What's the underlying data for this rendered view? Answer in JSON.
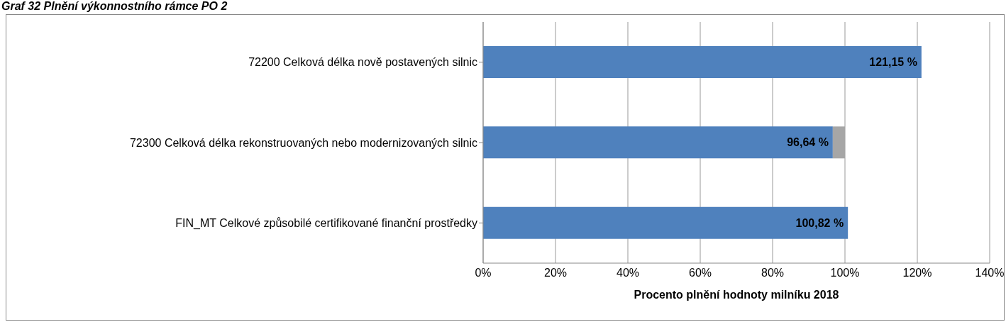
{
  "chart_data": {
    "type": "bar",
    "title": "Graf 32 Plnění výkonnostního rámce PO 2",
    "orientation": "horizontal",
    "stacked": true,
    "categories": [
      "72200 Celková délka nově postavených silnic",
      "72300 Celková délka rekonstruovaných nebo modernizovaných silnic",
      "FIN_MT Celkové způsobilé certifikované finanční prostředky"
    ],
    "series": [
      {
        "color": "#4f81bd",
        "values": [
          121.15,
          96.64,
          100.82
        ],
        "value_labels": [
          "121,15 %",
          "96,64 %",
          "100,82 %"
        ]
      },
      {
        "color": "#a6a6a6",
        "values": [
          null,
          3.36,
          null
        ]
      }
    ],
    "xlim": [
      0,
      140
    ],
    "xticks": [
      {
        "value": 0,
        "label": "0%"
      },
      {
        "value": 20,
        "label": "20%"
      },
      {
        "value": 40,
        "label": "40%"
      },
      {
        "value": 60,
        "label": "60%"
      },
      {
        "value": 80,
        "label": "80%"
      },
      {
        "value": 100,
        "label": "100%"
      },
      {
        "value": 120,
        "label": "120%"
      },
      {
        "value": 140,
        "label": "140%"
      }
    ],
    "xlabel": "Procento plnění hodnoty milníku 2018",
    "grid": "x",
    "legend": false
  }
}
